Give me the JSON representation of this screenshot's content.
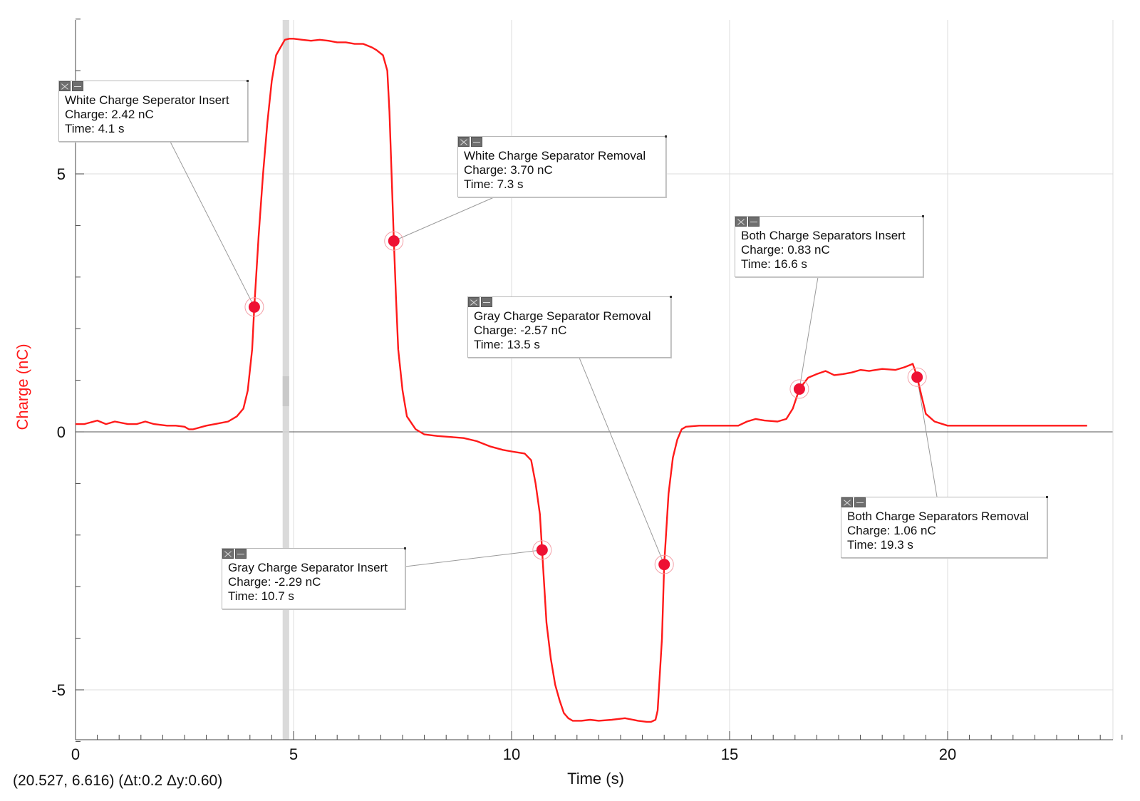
{
  "colors": {
    "series": "#ff1a1a",
    "marker": "#ee1133",
    "grid": "#dcdcdc",
    "axis": "#444444",
    "ylabel": "#ff1a1a",
    "highlight_band": "#d6d6d6"
  },
  "status": {
    "readout": "(20.527, 6.616) (Δt:0.2 Δy:0.60)"
  },
  "chart_data": {
    "type": "line",
    "title": "",
    "xlabel": "Time (s)",
    "ylabel": "Charge (nC)",
    "xlim": [
      0,
      24
    ],
    "ylim": [
      -6,
      8
    ],
    "xticks": [
      0,
      5,
      10,
      15,
      20
    ],
    "yticks": [
      -5,
      0,
      5
    ],
    "grid": true,
    "highlight_band_x": [
      4.75,
      4.9
    ],
    "series": [
      {
        "x": [
          0,
          0.2,
          0.5,
          0.7,
          0.9,
          1.2,
          1.4,
          1.6,
          1.8,
          2.1,
          2.3,
          2.5,
          2.6,
          2.7,
          3.0,
          3.2,
          3.5,
          3.7,
          3.85,
          3.95,
          4.05,
          4.1,
          4.2,
          4.3,
          4.4,
          4.5,
          4.6,
          4.7,
          4.8,
          4.9,
          5.0,
          5.2,
          5.4,
          5.6,
          5.8,
          6.0,
          6.2,
          6.4,
          6.6,
          6.8,
          6.9,
          7.05,
          7.15,
          7.2,
          7.3,
          7.35,
          7.4,
          7.5,
          7.6,
          7.8,
          8.0,
          8.3,
          8.6,
          8.9,
          9.2,
          9.5,
          9.8,
          10.0,
          10.3,
          10.45,
          10.55,
          10.65,
          10.7,
          10.8,
          10.9,
          11.0,
          11.1,
          11.2,
          11.3,
          11.4,
          11.6,
          11.8,
          12.0,
          12.3,
          12.6,
          12.9,
          13.1,
          13.2,
          13.3,
          13.35,
          13.45,
          13.5,
          13.6,
          13.7,
          13.8,
          13.9,
          14.0,
          14.3,
          14.6,
          14.9,
          15.2,
          15.4,
          15.6,
          15.8,
          16.1,
          16.3,
          16.45,
          16.6,
          16.8,
          17.0,
          17.2,
          17.4,
          17.6,
          17.8,
          18.0,
          18.2,
          18.5,
          18.8,
          19.0,
          19.15,
          19.2,
          19.25,
          19.3,
          19.4,
          19.5,
          19.7,
          20.0,
          20.3,
          20.6,
          21.0,
          21.5,
          22.0,
          22.5,
          23.0,
          23.2
        ],
        "y": [
          0.15,
          0.15,
          0.22,
          0.15,
          0.2,
          0.15,
          0.15,
          0.2,
          0.15,
          0.12,
          0.12,
          0.1,
          0.05,
          0.05,
          0.12,
          0.15,
          0.2,
          0.3,
          0.45,
          0.8,
          1.6,
          2.42,
          3.8,
          5.0,
          6.0,
          6.8,
          7.3,
          7.45,
          7.6,
          7.62,
          7.62,
          7.6,
          7.58,
          7.6,
          7.58,
          7.55,
          7.55,
          7.52,
          7.52,
          7.45,
          7.4,
          7.3,
          7.0,
          6.2,
          3.7,
          2.6,
          1.6,
          0.8,
          0.3,
          0.05,
          -0.05,
          -0.08,
          -0.1,
          -0.12,
          -0.18,
          -0.28,
          -0.35,
          -0.38,
          -0.42,
          -0.55,
          -1.0,
          -1.6,
          -2.29,
          -3.7,
          -4.4,
          -4.9,
          -5.2,
          -5.45,
          -5.55,
          -5.6,
          -5.6,
          -5.58,
          -5.6,
          -5.58,
          -5.55,
          -5.6,
          -5.62,
          -5.62,
          -5.58,
          -5.4,
          -4.0,
          -2.57,
          -1.2,
          -0.5,
          -0.15,
          0.05,
          0.1,
          0.12,
          0.12,
          0.12,
          0.12,
          0.2,
          0.25,
          0.22,
          0.2,
          0.25,
          0.45,
          0.83,
          1.05,
          1.12,
          1.18,
          1.1,
          1.12,
          1.15,
          1.2,
          1.18,
          1.22,
          1.2,
          1.25,
          1.3,
          1.32,
          1.2,
          1.06,
          0.7,
          0.35,
          0.2,
          0.12,
          0.12,
          0.12,
          0.12,
          0.12,
          0.12,
          0.12,
          0.12,
          0.12
        ]
      }
    ],
    "markers": [
      {
        "x": 4.1,
        "y": 2.42
      },
      {
        "x": 7.3,
        "y": 3.7
      },
      {
        "x": 10.7,
        "y": -2.29
      },
      {
        "x": 13.5,
        "y": -2.57
      },
      {
        "x": 16.6,
        "y": 0.83
      },
      {
        "x": 19.3,
        "y": 1.06
      }
    ],
    "annotations": [
      {
        "title": "White Charge Seperator Insert",
        "charge": "Charge: 2.42 nC",
        "time": "Time: 4.1 s"
      },
      {
        "title": "White Charge Separator Removal",
        "charge": "Charge: 3.70 nC",
        "time": "Time: 7.3 s"
      },
      {
        "title": "Gray Charge Separator Insert",
        "charge": "Charge: -2.29 nC",
        "time": "Time: 10.7 s"
      },
      {
        "title": "Gray Charge Separator Removal",
        "charge": "Charge: -2.57 nC",
        "time": "Time: 13.5 s"
      },
      {
        "title": "Both Charge Separators Insert",
        "charge": "Charge: 0.83 nC",
        "time": "Time: 16.6 s"
      },
      {
        "title": "Both Charge Separators Removal",
        "charge": "Charge: 1.06 nC",
        "time": "Time: 19.3 s"
      }
    ]
  }
}
